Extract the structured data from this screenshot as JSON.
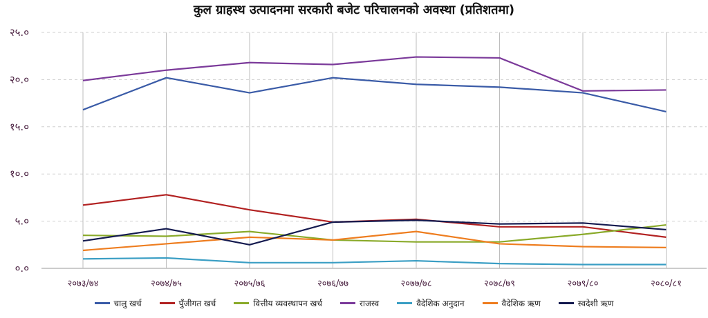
{
  "chart_data": {
    "type": "line",
    "title": "कुल ग्राहस्थ उत्पादनमा सरकारी बजेट परिचालनको अवस्था (प्रतिशतमा)",
    "categories": [
      "२०७३/७४",
      "२०७४/७५",
      "२०७५/७६",
      "२०७६/७७",
      "२०७७/७८",
      "२०७८/७९",
      "२०७९/८०",
      "२०८०/८१"
    ],
    "y_ticks": [
      {
        "value": 0,
        "label": "०.०"
      },
      {
        "value": 5,
        "label": "५.०"
      },
      {
        "value": 10,
        "label": "१०.०"
      },
      {
        "value": 15,
        "label": "१५.०"
      },
      {
        "value": 20,
        "label": "२०.०"
      },
      {
        "value": 25,
        "label": "२५.०"
      }
    ],
    "ylim": [
      0,
      25
    ],
    "grid": {
      "vertical": true,
      "horizontal_dashed": true
    },
    "legend_position": "bottom",
    "series": [
      {
        "name": "चालु खर्च",
        "color": "#3a5ba7",
        "values": [
          16.8,
          20.2,
          18.6,
          20.2,
          19.5,
          19.2,
          18.6,
          16.6
        ]
      },
      {
        "name": "पुँजीगत खर्च",
        "color": "#b22222",
        "values": [
          6.7,
          7.8,
          6.2,
          4.9,
          5.2,
          4.4,
          4.4,
          3.3
        ]
      },
      {
        "name": "वित्तीय व्यवस्थापन खर्च",
        "color": "#8aaa2a",
        "values": [
          3.5,
          3.4,
          3.9,
          3.0,
          2.8,
          2.8,
          3.6,
          4.6
        ]
      },
      {
        "name": "राजस्व",
        "color": "#7b3a9a",
        "values": [
          19.9,
          21.0,
          21.8,
          21.6,
          22.4,
          22.3,
          18.8,
          18.9
        ]
      },
      {
        "name": "वैदेशिक अनुदान",
        "color": "#3a9ec4",
        "values": [
          1.0,
          1.1,
          0.6,
          0.6,
          0.8,
          0.5,
          0.4,
          0.4
        ]
      },
      {
        "name": "वैदेशिक ऋण",
        "color": "#ee7d1f",
        "values": [
          1.9,
          2.6,
          3.3,
          3.0,
          3.9,
          2.6,
          2.3,
          2.2
        ]
      },
      {
        "name": "स्वदेशी ऋण",
        "color": "#141a4f",
        "values": [
          2.9,
          4.2,
          2.5,
          4.9,
          5.1,
          4.7,
          4.8,
          4.1
        ]
      }
    ]
  }
}
